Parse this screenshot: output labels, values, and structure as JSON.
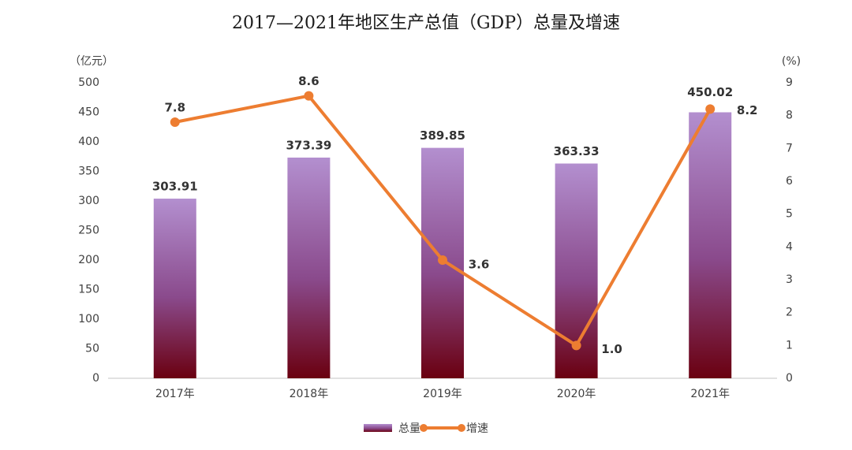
{
  "chart_data": {
    "type": "bar",
    "title": "2017—2021年地区生产总值（GDP）总量及增速",
    "y_label": "（亿元）",
    "y2_label": "(%)",
    "categories": [
      "2017年",
      "2018年",
      "2019年",
      "2020年",
      "2021年"
    ],
    "series": [
      {
        "name": "总量",
        "type": "bar",
        "color": "#b38fcf",
        "values": [
          303.91,
          373.39,
          389.85,
          363.33,
          450.02
        ]
      },
      {
        "name": "增速",
        "type": "line",
        "axis": "y2",
        "color": "#ed7d31",
        "values": [
          7.8,
          8.6,
          3.6,
          1.0,
          8.2
        ],
        "value_labels": [
          "7.8",
          "8.6",
          "3.6",
          "1.0",
          "8.2"
        ]
      }
    ],
    "ylim": [
      0,
      500
    ],
    "yticks": [
      0,
      50,
      100,
      150,
      200,
      250,
      300,
      350,
      400,
      450,
      500
    ],
    "y2lim": [
      0,
      9
    ],
    "y2ticks": [
      0,
      1,
      2,
      3,
      4,
      5,
      6,
      7,
      8,
      9
    ],
    "grid": false
  }
}
